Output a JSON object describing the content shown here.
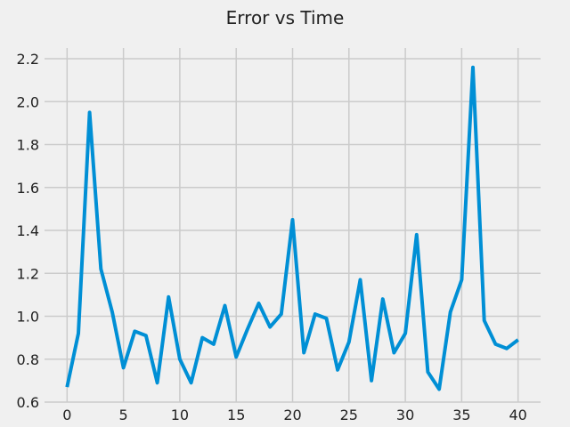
{
  "chart_data": {
    "type": "line",
    "title": "Error vs Time",
    "xlabel": "",
    "ylabel": "",
    "xlim": [
      -2,
      42
    ],
    "ylim": [
      0.6,
      2.25
    ],
    "xticks": [
      0,
      5,
      10,
      15,
      20,
      25,
      30,
      35,
      40
    ],
    "yticks": [
      0.6,
      0.8,
      1.0,
      1.2,
      1.4,
      1.6,
      1.8,
      2.0,
      2.2
    ],
    "xtick_labels": [
      "0",
      "5",
      "10",
      "15",
      "20",
      "25",
      "30",
      "35",
      "40"
    ],
    "ytick_labels": [
      "0.6",
      "0.8",
      "1.0",
      "1.2",
      "1.4",
      "1.6",
      "1.8",
      "2.0",
      "2.2"
    ],
    "grid": true,
    "series": [
      {
        "color": "#008fd5",
        "x": [
          0,
          1,
          2,
          3,
          4,
          5,
          6,
          7,
          8,
          9,
          10,
          11,
          12,
          13,
          14,
          15,
          16,
          17,
          18,
          19,
          20,
          21,
          22,
          23,
          24,
          25,
          26,
          27,
          28,
          29,
          30,
          31,
          32,
          33,
          34,
          35,
          36,
          37,
          38,
          39,
          40
        ],
        "y": [
          0.67,
          0.92,
          1.95,
          1.22,
          1.02,
          0.76,
          0.93,
          0.91,
          0.69,
          1.09,
          0.8,
          0.69,
          0.9,
          0.87,
          1.05,
          0.81,
          0.94,
          1.06,
          0.95,
          1.01,
          1.45,
          0.83,
          1.01,
          0.99,
          0.75,
          0.88,
          1.17,
          0.7,
          1.08,
          0.83,
          0.92,
          1.38,
          0.74,
          0.66,
          1.02,
          1.17,
          2.16,
          0.98,
          0.87,
          0.85,
          0.89
        ]
      }
    ]
  }
}
